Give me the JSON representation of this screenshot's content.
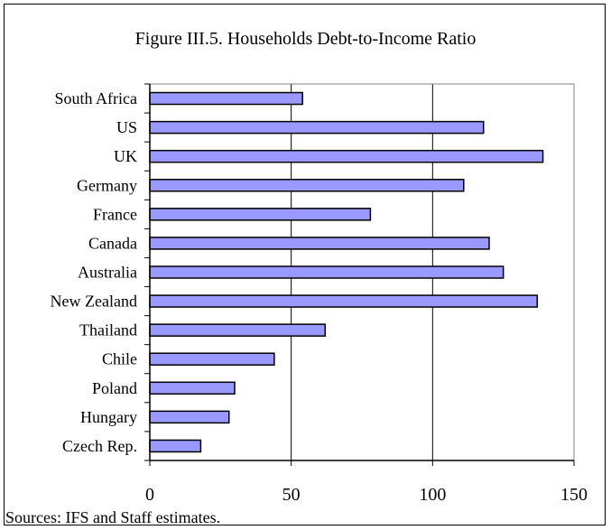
{
  "chart_data": {
    "type": "bar",
    "orientation": "horizontal",
    "title": "Figure III.5. Households Debt-to-Income Ratio",
    "categories": [
      "South Africa",
      "US",
      "UK",
      "Germany",
      "France",
      "Canada",
      "Australia",
      "New Zealand",
      "Thailand",
      "Chile",
      "Poland",
      "Hungary",
      "Czech Rep."
    ],
    "values": [
      54,
      118,
      139,
      111,
      78,
      120,
      125,
      137,
      62,
      44,
      30,
      28,
      18
    ],
    "xlim": [
      0,
      150
    ],
    "xticks": [
      "0",
      "50",
      "100",
      "150"
    ],
    "xlabel": "",
    "ylabel": "",
    "grid": "vertical",
    "legend": "none",
    "colors": {
      "bar": "#9999ff",
      "bar_edge": "#000000",
      "grid": "#000000",
      "plot_border": "#808080"
    }
  },
  "footer": {
    "source": "Sources: IFS and Staff estimates."
  }
}
